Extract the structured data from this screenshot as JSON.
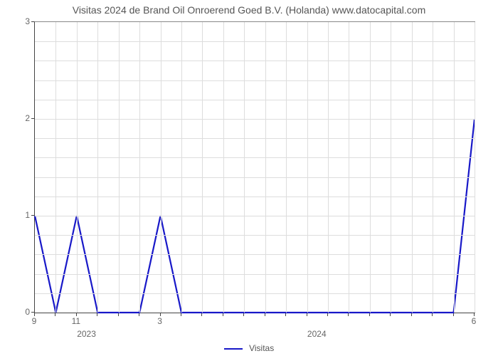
{
  "chart": {
    "type": "line",
    "title": "Visitas 2024 de Brand Oil Onroerend Goed B.V. (Holanda) www.datocapital.com",
    "title_fontsize": 14,
    "title_color": "#555555",
    "background_color": "#ffffff",
    "plot_border_color": "#888888",
    "axis_color": "#444444",
    "grid_color": "#dddddd",
    "tick_label_color": "#666666",
    "tick_fontsize": 12,
    "line_color": "#1818c8",
    "line_width": 2.2,
    "legend": {
      "label": "Visitas",
      "position": "bottom-center"
    },
    "ylim": [
      0,
      3
    ],
    "ytick_step": 1,
    "yticks": [
      0,
      1,
      2,
      3
    ],
    "minor_y_step": 0.2,
    "x_points": 22,
    "x_tick_labels": [
      {
        "i": 0,
        "label": "9"
      },
      {
        "i": 2,
        "label": "11"
      },
      {
        "i": 6,
        "label": "3"
      },
      {
        "i": 21,
        "label": "6"
      }
    ],
    "x_minor_tick_indices": [
      1,
      3,
      4,
      5,
      7,
      8,
      9,
      10,
      11,
      12,
      13,
      14,
      15,
      16,
      17,
      18,
      19,
      20
    ],
    "x_category_labels": [
      {
        "center_i": 2.5,
        "label": "2023"
      },
      {
        "center_i": 13.5,
        "label": "2024"
      }
    ],
    "values": [
      1,
      0,
      1,
      0,
      0,
      0,
      1,
      0,
      0,
      0,
      0,
      0,
      0,
      0,
      0,
      0,
      0,
      0,
      0,
      0,
      0,
      2
    ]
  }
}
